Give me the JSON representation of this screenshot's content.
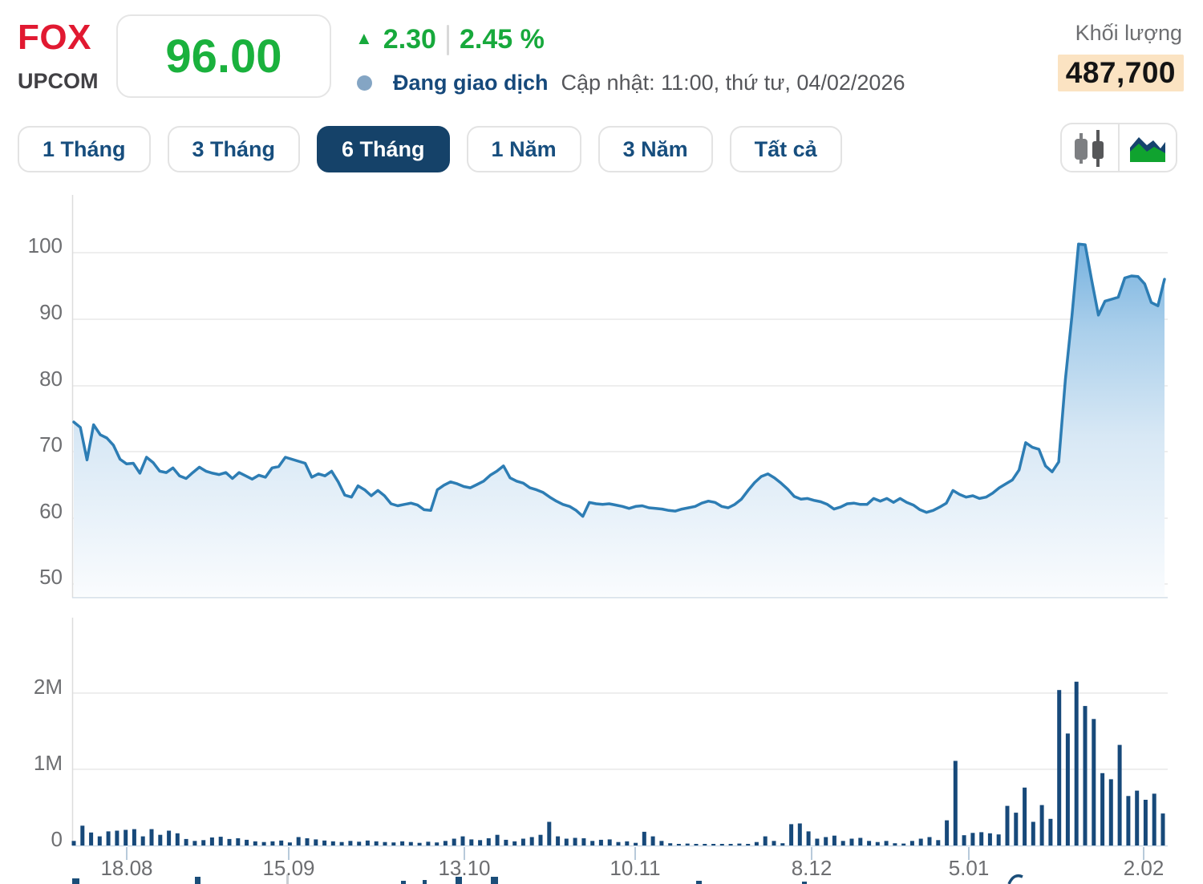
{
  "header": {
    "symbol": "FOX",
    "exchange": "UPCOM",
    "price": "96.00",
    "up_arrow": "▲",
    "change_abs": "2.30",
    "change_pct": "2.45 %",
    "status_label": "Đang giao dịch",
    "updated_label": "Cập nhật: 11:00, thứ tư, 04/02/2026",
    "volume_label": "Khối lượng",
    "volume_value": "487,700"
  },
  "colors": {
    "up_green": "#17a93c",
    "price_green": "#1ab13d",
    "symbol_red": "#e11931",
    "navy_text": "#174e7e",
    "tab_active_bg": "#154269",
    "line_blue": "#2d7db4",
    "volume_bar": "#17497a",
    "volume_highlight_bg": "#fbe3c2",
    "status_dot": "#84a5c4",
    "axis_label_gray": "#6d6e71"
  },
  "tabs": [
    {
      "label": "1 Tháng",
      "active": false
    },
    {
      "label": "3 Tháng",
      "active": false
    },
    {
      "label": "6 Tháng",
      "active": true
    },
    {
      "label": "1 Năm",
      "active": false
    },
    {
      "label": "3 Năm",
      "active": false
    },
    {
      "label": "Tất cả",
      "active": false
    }
  ],
  "chart_icons": [
    {
      "name": "candlestick-icon"
    },
    {
      "name": "area-chart-icon"
    }
  ],
  "chart_data": {
    "type": "area",
    "x_ticks": [
      "18.08",
      "15.09",
      "13.10",
      "10.11",
      "8.12",
      "5.01",
      "2.02"
    ],
    "price": {
      "y_ticks": [
        100,
        90,
        80,
        70,
        60,
        50
      ],
      "ylim": [
        50,
        101.5
      ],
      "values": [
        74.5,
        73.7,
        68.8,
        74.1,
        72.6,
        72.1,
        71.0,
        68.9,
        68.2,
        68.3,
        66.8,
        69.2,
        68.4,
        67.1,
        66.9,
        67.6,
        66.4,
        66.0,
        66.9,
        67.7,
        67.1,
        66.8,
        66.6,
        66.9,
        66.0,
        66.9,
        66.4,
        65.9,
        66.5,
        66.2,
        67.6,
        67.8,
        69.2,
        68.9,
        68.6,
        68.3,
        66.2,
        66.7,
        66.4,
        67.1,
        65.5,
        63.5,
        63.2,
        64.9,
        64.3,
        63.4,
        64.2,
        63.4,
        62.2,
        61.9,
        62.1,
        62.3,
        62.0,
        61.3,
        61.2,
        64.3,
        65.0,
        65.5,
        65.2,
        64.8,
        64.6,
        65.1,
        65.6,
        66.5,
        67.1,
        67.9,
        66.1,
        65.6,
        65.3,
        64.6,
        64.3,
        63.9,
        63.2,
        62.6,
        62.1,
        61.8,
        61.2,
        60.3,
        62.4,
        62.2,
        62.1,
        62.2,
        62.0,
        61.8,
        61.5,
        61.8,
        61.9,
        61.6,
        61.5,
        61.4,
        61.2,
        61.1,
        61.4,
        61.6,
        61.8,
        62.3,
        62.6,
        62.4,
        61.8,
        61.6,
        62.1,
        62.9,
        64.2,
        65.4,
        66.3,
        66.7,
        66.1,
        65.3,
        64.4,
        63.3,
        62.9,
        63.0,
        62.7,
        62.5,
        62.1,
        61.4,
        61.7,
        62.2,
        62.3,
        62.1,
        62.1,
        63.0,
        62.6,
        63.0,
        62.4,
        63.0,
        62.4,
        62.0,
        61.3,
        60.9,
        61.2,
        61.7,
        62.3,
        64.2,
        63.6,
        63.2,
        63.4,
        63.0,
        63.2,
        63.8,
        64.6,
        65.2,
        65.8,
        67.3,
        71.4,
        70.7,
        70.4,
        67.9,
        67.0,
        68.5,
        80.9,
        90.5,
        101.3,
        101.2,
        95.8,
        90.6,
        92.7,
        93.0,
        93.3,
        96.2,
        96.5,
        96.4,
        95.3,
        92.5,
        92.0,
        96.0
      ]
    },
    "volume": {
      "y_ticks": [
        "2M",
        "1M",
        "0"
      ],
      "ylim_millions": [
        0,
        2.4
      ],
      "values_thousands": [
        60,
        260,
        170,
        120,
        185,
        195,
        205,
        215,
        120,
        215,
        140,
        195,
        160,
        85,
        60,
        70,
        105,
        115,
        85,
        95,
        75,
        55,
        45,
        55,
        65,
        40,
        110,
        95,
        80,
        65,
        55,
        45,
        60,
        50,
        65,
        55,
        45,
        40,
        55,
        45,
        35,
        50,
        40,
        60,
        90,
        120,
        80,
        70,
        95,
        140,
        75,
        55,
        90,
        110,
        140,
        310,
        120,
        90,
        100,
        95,
        60,
        75,
        80,
        45,
        55,
        35,
        180,
        120,
        60,
        30,
        15,
        25,
        10,
        20,
        15,
        20,
        15,
        25,
        20,
        45,
        120,
        60,
        30,
        280,
        290,
        185,
        90,
        110,
        130,
        60,
        90,
        100,
        60,
        45,
        60,
        30,
        25,
        60,
        90,
        110,
        70,
        330,
        1110,
        135,
        165,
        175,
        160,
        145,
        520,
        430,
        760,
        310,
        530,
        350,
        2040,
        1470,
        2150,
        1830,
        1660,
        950,
        870,
        1320,
        650,
        720,
        600,
        680,
        420
      ]
    }
  }
}
